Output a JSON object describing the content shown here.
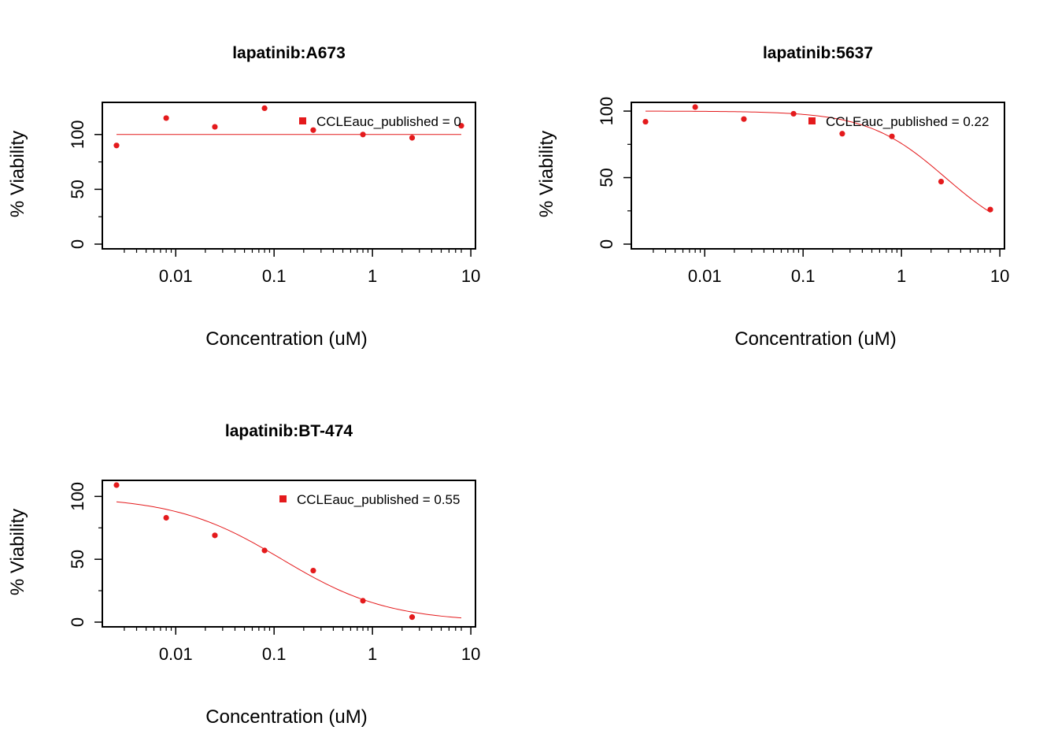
{
  "colors": {
    "series": "#e41a1c",
    "axis": "#000000"
  },
  "chart_data": [
    {
      "type": "scatter",
      "title": "lapatinib:A673",
      "xlabel": "Concentration (uM)",
      "ylabel": "% Viability",
      "xscale": "log",
      "xlim": [
        0.0025,
        8
      ],
      "ylim": [
        0,
        125
      ],
      "x_ticks": [
        0.01,
        0.1,
        1,
        10
      ],
      "x_tick_labels": [
        "0.01",
        "0.1",
        "1",
        "10"
      ],
      "y_ticks": [
        0,
        50,
        100
      ],
      "y_tick_labels": [
        "0",
        "50",
        "100"
      ],
      "legend": {
        "label": "CCLEauc_published = 0",
        "position": "top-right"
      },
      "points": {
        "x": [
          0.0025,
          0.008,
          0.025,
          0.08,
          0.25,
          0.8,
          2.53,
          8
        ],
        "y": [
          90,
          115,
          107,
          124,
          104,
          100,
          97,
          108
        ]
      },
      "fit": {
        "model": "flat",
        "value": 100
      }
    },
    {
      "type": "scatter",
      "title": "lapatinib:5637",
      "xlabel": "Concentration (uM)",
      "ylabel": "% Viability",
      "xscale": "log",
      "xlim": [
        0.0025,
        8
      ],
      "ylim": [
        0,
        103
      ],
      "x_ticks": [
        0.01,
        0.1,
        1,
        10
      ],
      "x_tick_labels": [
        "0.01",
        "0.1",
        "1",
        "10"
      ],
      "y_ticks": [
        0,
        50,
        100
      ],
      "y_tick_labels": [
        "0",
        "50",
        "100"
      ],
      "legend": {
        "label": "CCLEauc_published = 0.22",
        "position": "top-right"
      },
      "points": {
        "x": [
          0.0025,
          0.008,
          0.025,
          0.08,
          0.25,
          0.8,
          2.53,
          8
        ],
        "y": [
          92,
          103,
          94,
          98,
          83,
          81,
          47,
          26
        ]
      },
      "fit": {
        "model": "hill",
        "top": 100,
        "bottom": 0,
        "ec50": 2.8,
        "slope": 1.1
      }
    },
    {
      "type": "scatter",
      "title": "lapatinib:BT-474",
      "xlabel": "Concentration (uM)",
      "ylabel": "% Viability",
      "xscale": "log",
      "xlim": [
        0.0025,
        8
      ],
      "ylim": [
        0,
        109
      ],
      "x_ticks": [
        0.01,
        0.1,
        1,
        10
      ],
      "x_tick_labels": [
        "0.01",
        "0.1",
        "1",
        "10"
      ],
      "y_ticks": [
        0,
        50,
        100
      ],
      "y_tick_labels": [
        "0",
        "50",
        "100"
      ],
      "legend": {
        "label": "CCLEauc_published = 0.55",
        "position": "top-right"
      },
      "points": {
        "x": [
          0.0025,
          0.008,
          0.025,
          0.08,
          0.25,
          0.8,
          2.53
        ],
        "y": [
          109,
          83,
          69,
          57,
          41,
          17,
          4
        ]
      },
      "fit": {
        "model": "hill",
        "top": 100,
        "bottom": 0,
        "ec50": 0.12,
        "slope": 0.8
      }
    }
  ]
}
